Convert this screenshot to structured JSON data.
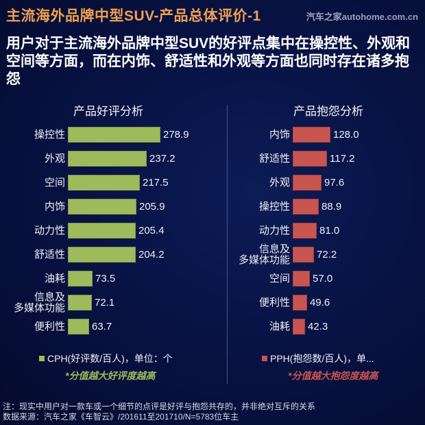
{
  "header": {
    "title": "主流海外品牌中型SUV-产品总体评价-1",
    "watermark": "汽车之家autohome.com.cn",
    "subtitle": "用户对于主流海外品牌中型SUV的好评点集中在操控性、外观和空间等方面，而在内饰、舒适性和外观等方面也同时存在诸多抱怨"
  },
  "colors": {
    "title": "#f0a050",
    "positive_bar": "#9dbb5c",
    "negative_bar": "#c85550",
    "background": "#081345"
  },
  "chart_data": [
    {
      "type": "bar",
      "orientation": "horizontal",
      "title": "产品好评分析",
      "categories": [
        "操控性",
        "外观",
        "空间",
        "内饰",
        "动力性",
        "舒适性",
        "油耗",
        "信息及多媒体功能",
        "便利性"
      ],
      "category_display": [
        "操控性",
        "外观",
        "空间",
        "内饰",
        "动力性",
        "舒适性",
        "油耗",
        "信息及\n多媒体功能",
        "便利性"
      ],
      "values": [
        278.9,
        237.2,
        217.5,
        205.9,
        205.4,
        204.2,
        73.5,
        72.1,
        63.7
      ],
      "value_labels": [
        "278.9",
        "237.2",
        "217.5",
        "205.9",
        "205.4",
        "204.2",
        "73.5",
        "72.1",
        "63.7"
      ],
      "legend": "CPH(好评数/百人)，单位：个",
      "note": "*分值越大好评度越高",
      "color": "#9dbb5c",
      "xlabel": "",
      "ylabel": ""
    },
    {
      "type": "bar",
      "orientation": "horizontal",
      "title": "产品抱怨分析",
      "categories": [
        "内饰",
        "舒适性",
        "外观",
        "操控性",
        "动力性",
        "信息及多媒体功能",
        "空间",
        "便利性",
        "油耗"
      ],
      "category_display": [
        "内饰",
        "舒适性",
        "外观",
        "操控性",
        "动力性",
        "信息及\n多媒体功能",
        "空间",
        "便利性",
        "油耗"
      ],
      "values": [
        128.0,
        117.2,
        97.6,
        88.9,
        81.0,
        72.2,
        57.0,
        49.6,
        42.3
      ],
      "value_labels": [
        "128.0",
        "117.2",
        "97.6",
        "88.9",
        "81.0",
        "72.2",
        "57.0",
        "49.6",
        "42.3"
      ],
      "legend": "PPH(抱怨数/百人)，单...",
      "note": "*分值越大抱怨度越高",
      "color": "#c85550",
      "xlabel": "",
      "ylabel": ""
    }
  ],
  "footer": {
    "note_line": "注：现实中用户对一款车或一个细节的点评是好评与抱怨共存的，并非绝对互斥的关系",
    "source_line": "数据来源：汽车之家《车智云》/201611至201710/N=5783位车主"
  }
}
